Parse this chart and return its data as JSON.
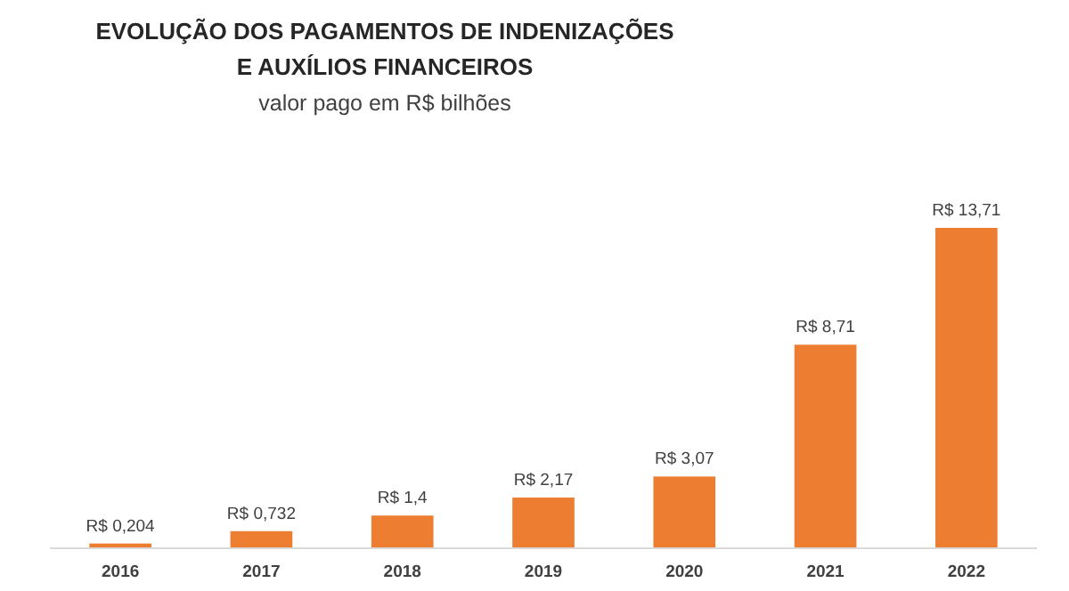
{
  "chart_data": {
    "type": "bar",
    "title": "EVOLUÇÃO DOS PAGAMENTOS DE INDENIZAÇÕES\nE AUXÍLIOS FINANCEIROS",
    "subtitle": "valor pago em R$ bilhões",
    "categories": [
      "2016",
      "2017",
      "2018",
      "2019",
      "2020",
      "2021",
      "2022"
    ],
    "values": [
      0.204,
      0.732,
      1.4,
      2.17,
      3.07,
      8.71,
      13.71
    ],
    "value_labels": [
      "R$ 0,204",
      "R$ 0,732",
      "R$ 1,4",
      "R$ 2,17",
      "R$ 3,07",
      "R$ 8,71",
      "R$ 13,71"
    ],
    "color": "#ed7d31"
  }
}
